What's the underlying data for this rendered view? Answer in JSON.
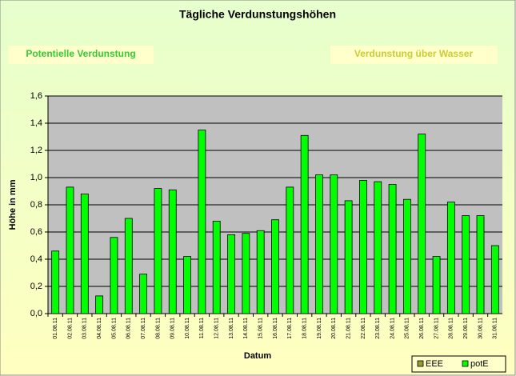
{
  "chart_data": {
    "type": "bar",
    "title": "Tägliche Verdunstungshöhen",
    "annotations": [
      "Potentielle Verdunstung",
      "Verdunstung über Wasser"
    ],
    "x_label": "Datum",
    "y_label": "Höhe in mm",
    "categories": [
      "01.08.11",
      "02.08.11",
      "03.08.11",
      "04.08.11",
      "05.08.11",
      "06.08.11",
      "07.08.11",
      "08.08.11",
      "09.08.11",
      "10.08.11",
      "11.08.11",
      "12.08.11",
      "13.08.11",
      "14.08.11",
      "15.08.11",
      "16.08.11",
      "17.08.11",
      "18.08.11",
      "19.08.11",
      "20.08.11",
      "21.08.11",
      "22.08.11",
      "23.08.11",
      "24.08.11",
      "25.08.11",
      "26.08.11",
      "27.08.11",
      "28.08.11",
      "29.08.11",
      "30.08.11",
      "31.08.11"
    ],
    "series": [
      {
        "name": "EEE",
        "color": "#999933",
        "values": [
          null,
          null,
          null,
          null,
          null,
          null,
          null,
          null,
          null,
          null,
          null,
          null,
          null,
          null,
          null,
          null,
          null,
          null,
          null,
          null,
          null,
          null,
          null,
          null,
          null,
          null,
          null,
          null,
          null,
          null,
          null
        ]
      },
      {
        "name": "potE",
        "color": "#00ff00",
        "values": [
          0.46,
          0.93,
          0.88,
          0.13,
          0.56,
          0.7,
          0.29,
          0.92,
          0.91,
          0.42,
          1.35,
          0.68,
          0.58,
          0.59,
          0.61,
          0.69,
          0.93,
          1.31,
          1.02,
          1.02,
          0.83,
          0.98,
          0.97,
          0.95,
          0.84,
          1.32,
          0.42,
          0.82,
          0.72,
          0.72,
          0.5
        ]
      }
    ],
    "ylim": [
      0,
      1.6
    ],
    "yticks": [
      {
        "value": 0,
        "label": "0,0"
      },
      {
        "value": 0.2,
        "label": "0,2"
      },
      {
        "value": 0.4,
        "label": "0,4"
      },
      {
        "value": 0.6,
        "label": "0,6"
      },
      {
        "value": 0.8,
        "label": "0,8"
      },
      {
        "value": 1.0,
        "label": "1,0"
      },
      {
        "value": 1.2,
        "label": "1,2"
      },
      {
        "value": 1.4,
        "label": "1,4"
      },
      {
        "value": 1.6,
        "label": "1,6"
      }
    ],
    "grid": true,
    "legend": "bottom-right"
  }
}
